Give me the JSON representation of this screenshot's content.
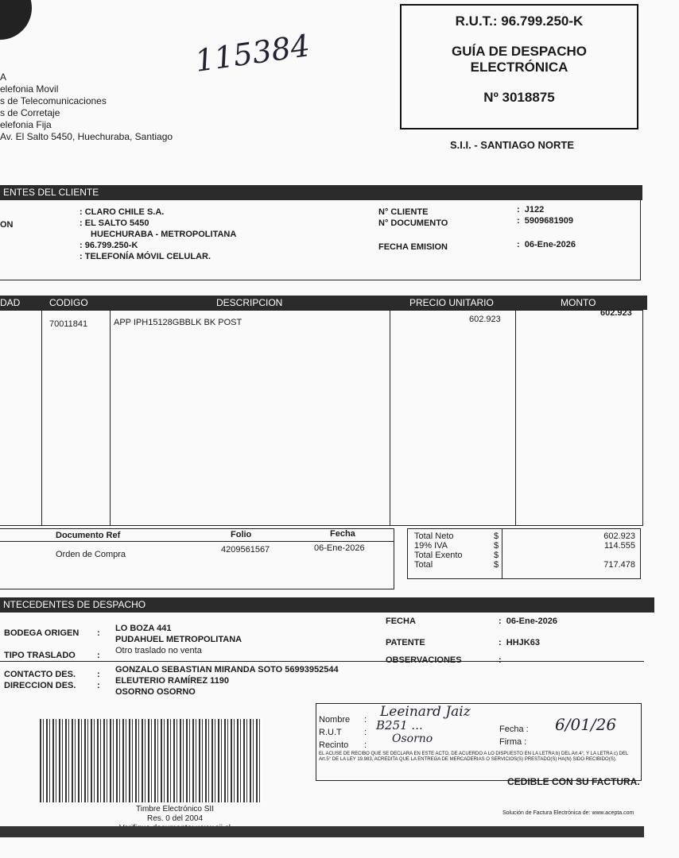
{
  "issuer": {
    "name_fragment": "A",
    "lines": [
      "elefonia Movil",
      "s de Telecomunicaciones",
      "s de Corretaje",
      "elefonia Fija",
      "Av. El Salto 5450, Huechuraba, Santiago"
    ]
  },
  "handwritten_number": "115384",
  "header_box": {
    "rut": "R.U.T.: 96.799.250-K",
    "doc_type_1": "GUÍA DE DESPACHO",
    "doc_type_2": "ELECTRÓNICA",
    "number": "Nº 3018875",
    "sii": "S.I.I. - SANTIAGO NORTE"
  },
  "client": {
    "section_title": "ENTES DEL CLIENTE",
    "label_fragment": "ON",
    "name": "CLARO CHILE S.A.",
    "address": "EL SALTO 5450",
    "commune": "HUECHURABA - METROPOLITANA",
    "rut": "96.799.250-K",
    "activity": "TELEFONÍA MÓVIL CELULAR.",
    "n_cliente_label": "N° CLIENTE",
    "n_cliente": "J122",
    "n_documento_label": "N° DOCUMENTO",
    "n_documento": "5909681909",
    "fecha_label": "FECHA EMISION",
    "fecha": "06-Ene-2026"
  },
  "items": {
    "headers": [
      "DAD",
      "CODIGO",
      "DESCRIPCION",
      "PRECIO UNITARIO",
      "MONTO"
    ],
    "rows": [
      {
        "codigo": "70011841",
        "descripcion": "APP IPH15128GBBLK BK POST",
        "precio": "602.923",
        "monto": "602.923"
      }
    ]
  },
  "refs": {
    "headers": [
      "Documento Ref",
      "Folio",
      "Fecha"
    ],
    "rows": [
      {
        "doc": "Orden de Compra",
        "folio": "4209561567",
        "fecha": "06-Ene-2026"
      }
    ]
  },
  "totals": [
    {
      "label": "Total Neto",
      "cur": "$",
      "value": "602.923"
    },
    {
      "label": "19% IVA",
      "cur": "$",
      "value": "114.555"
    },
    {
      "label": "Total Exento",
      "cur": "$",
      "value": ""
    },
    {
      "label": "Total",
      "cur": "$",
      "value": "717.478"
    }
  ],
  "dispatch": {
    "section_title": "NTECEDENTES DE DESPACHO",
    "bodega_label": "BODEGA ORIGEN",
    "bodega_1": "LO BOZA 441",
    "bodega_2": "PUDAHUEL METROPOLITANA",
    "tipo_label": "TIPO TRASLADO",
    "tipo": "Otro traslado no venta",
    "contacto_label": "CONTACTO DES.",
    "contacto": "GONZALO SEBASTIAN MIRANDA SOTO 56993952544",
    "direccion_label": "DIRECCION DES.",
    "direccion_1": "ELEUTERIO RAMÍREZ 1190",
    "direccion_2": "OSORNO OSORNO",
    "fecha_label": "FECHA",
    "fecha": "06-Ene-2026",
    "patente_label": "PATENTE",
    "patente": "HHJK63",
    "obs_label": "OBSERVACIONES"
  },
  "stamp": {
    "line1": "Timbre Electrónico SII",
    "line2": "Res. 0 del 2004",
    "line3": "Verifique documento: www.sii.cl"
  },
  "receipt": {
    "nombre_label": "Nombre",
    "rut_label": "R.U.T",
    "recinto_label": "Recinto",
    "fecha_label": "Fecha :",
    "firma_label": "Firma :",
    "nombre_hand": "Leeinard Jaiz",
    "rut_hand": "B251 ...",
    "recinto_hand": "Osorno",
    "fecha_hand": "6/01/26",
    "legal": "EL ACUSE DE RECIBO QUE SE DECLARA EN ESTE ACTO, DE ACUERDO A LO DISPUESTO EN LA LETRA b) DEL Art.4°, Y LA LETRA c) DEL Art.5° DE LA LEY 19.983, ACREDITA QUE LA ENTREGA DE MERCADERIAS O SERVICIOS(S) PRESTADO(S) HA(N) SIDO RECIBIDO(S).",
    "cedible": "CEDIBLE CON SU FACTURA.",
    "footer": "Solución de Factura Electrónica de: www.acepta.com"
  }
}
